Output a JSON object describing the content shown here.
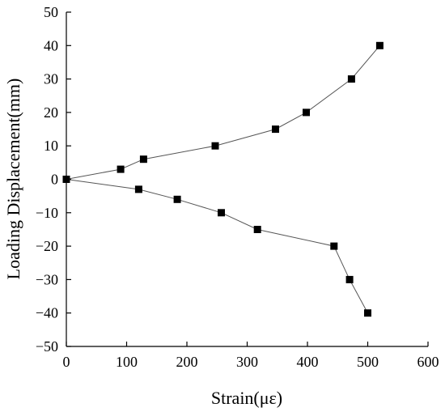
{
  "chart_data": {
    "type": "scatter",
    "xlabel": "Strain(με)",
    "ylabel": "Loading Displacement(mm)",
    "xlim": [
      0,
      600
    ],
    "ylim": [
      -50,
      50
    ],
    "xticks": [
      0,
      100,
      200,
      300,
      400,
      500,
      600
    ],
    "yticks": [
      -50,
      -40,
      -30,
      -20,
      -10,
      0,
      10,
      20,
      30,
      40,
      50
    ],
    "grid": false,
    "series": [
      {
        "points": [
          {
            "x": 0,
            "y": 0
          },
          {
            "x": 90,
            "y": 3
          },
          {
            "x": 128,
            "y": 6
          },
          {
            "x": 247,
            "y": 10
          },
          {
            "x": 347,
            "y": 15
          },
          {
            "x": 398,
            "y": 20
          },
          {
            "x": 473,
            "y": 30
          },
          {
            "x": 520,
            "y": 40
          }
        ],
        "color": "#000000"
      },
      {
        "points": [
          {
            "x": 0,
            "y": 0
          },
          {
            "x": 120,
            "y": -3
          },
          {
            "x": 184,
            "y": -6
          },
          {
            "x": 257,
            "y": -10
          },
          {
            "x": 317,
            "y": -15
          },
          {
            "x": 444,
            "y": -20
          },
          {
            "x": 470,
            "y": -30
          },
          {
            "x": 500,
            "y": -40
          }
        ],
        "color": "#000000"
      }
    ]
  }
}
